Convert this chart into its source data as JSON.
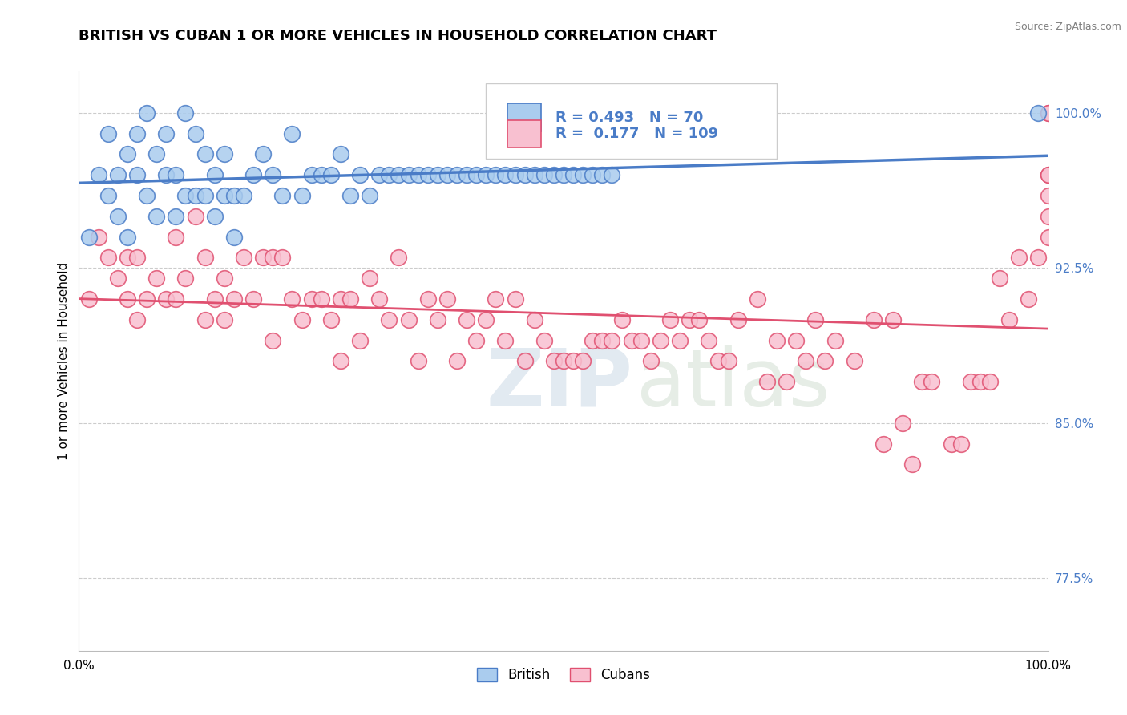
{
  "title": "BRITISH VS CUBAN 1 OR MORE VEHICLES IN HOUSEHOLD CORRELATION CHART",
  "source": "Source: ZipAtlas.com",
  "ylabel": "1 or more Vehicles in Household",
  "xlim": [
    0,
    100
  ],
  "ylim": [
    74,
    102
  ],
  "yticks_right": [
    77.5,
    85.0,
    92.5,
    100.0
  ],
  "british_R": 0.493,
  "british_N": 70,
  "cuban_R": 0.177,
  "cuban_N": 109,
  "british_color": "#aaccee",
  "cuban_color": "#f8c0d0",
  "british_line_color": "#4a7cc7",
  "cuban_line_color": "#e05070",
  "watermark_zip": "ZIP",
  "watermark_atlas": "atlas",
  "british_x": [
    1,
    2,
    3,
    3,
    4,
    4,
    5,
    5,
    6,
    6,
    7,
    7,
    8,
    8,
    9,
    9,
    10,
    10,
    11,
    11,
    12,
    12,
    13,
    13,
    14,
    14,
    15,
    15,
    16,
    16,
    17,
    18,
    19,
    20,
    21,
    22,
    23,
    24,
    25,
    26,
    27,
    28,
    29,
    30,
    31,
    32,
    33,
    34,
    35,
    36,
    37,
    38,
    39,
    40,
    41,
    42,
    43,
    44,
    45,
    46,
    47,
    48,
    49,
    50,
    51,
    52,
    53,
    54,
    55,
    99
  ],
  "british_y": [
    94,
    97,
    96,
    99,
    97,
    95,
    98,
    94,
    99,
    97,
    100,
    96,
    98,
    95,
    99,
    97,
    97,
    95,
    100,
    96,
    99,
    96,
    98,
    96,
    97,
    95,
    98,
    96,
    96,
    94,
    96,
    97,
    98,
    97,
    96,
    99,
    96,
    97,
    97,
    97,
    98,
    96,
    97,
    96,
    97,
    97,
    97,
    97,
    97,
    97,
    97,
    97,
    97,
    97,
    97,
    97,
    97,
    97,
    97,
    97,
    97,
    97,
    97,
    97,
    97,
    97,
    97,
    97,
    97,
    100
  ],
  "cuban_x": [
    1,
    2,
    3,
    4,
    5,
    5,
    6,
    6,
    7,
    8,
    9,
    10,
    10,
    11,
    12,
    13,
    13,
    14,
    15,
    15,
    16,
    17,
    18,
    19,
    20,
    20,
    21,
    22,
    23,
    24,
    25,
    26,
    27,
    27,
    28,
    29,
    30,
    31,
    32,
    33,
    34,
    35,
    36,
    37,
    38,
    39,
    40,
    41,
    42,
    43,
    44,
    45,
    46,
    47,
    48,
    49,
    50,
    51,
    52,
    53,
    54,
    55,
    56,
    57,
    58,
    59,
    60,
    61,
    62,
    63,
    64,
    65,
    66,
    67,
    68,
    70,
    71,
    72,
    73,
    74,
    75,
    76,
    77,
    78,
    80,
    82,
    83,
    84,
    85,
    86,
    87,
    88,
    90,
    91,
    92,
    93,
    94,
    95,
    96,
    97,
    98,
    99,
    100,
    100,
    100,
    100,
    100,
    100,
    100
  ],
  "cuban_y": [
    91,
    94,
    93,
    92,
    93,
    91,
    93,
    90,
    91,
    92,
    91,
    94,
    91,
    92,
    95,
    93,
    90,
    91,
    92,
    90,
    91,
    93,
    91,
    93,
    93,
    89,
    93,
    91,
    90,
    91,
    91,
    90,
    91,
    88,
    91,
    89,
    92,
    91,
    90,
    93,
    90,
    88,
    91,
    90,
    91,
    88,
    90,
    89,
    90,
    91,
    89,
    91,
    88,
    90,
    89,
    88,
    88,
    88,
    88,
    89,
    89,
    89,
    90,
    89,
    89,
    88,
    89,
    90,
    89,
    90,
    90,
    89,
    88,
    88,
    90,
    91,
    87,
    89,
    87,
    89,
    88,
    90,
    88,
    89,
    88,
    90,
    84,
    90,
    85,
    83,
    87,
    87,
    84,
    84,
    87,
    87,
    87,
    92,
    90,
    93,
    91,
    93,
    100,
    100,
    95,
    96,
    97,
    97,
    94
  ]
}
